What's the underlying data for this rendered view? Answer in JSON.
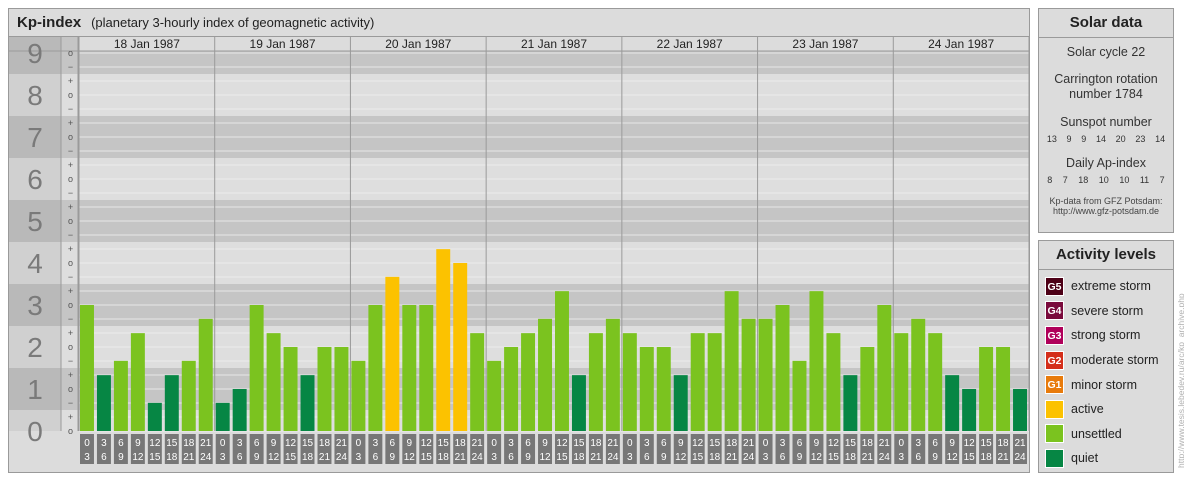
{
  "header": {
    "title": "Kp-index",
    "subtitle": "(planetary 3-hourly index of geomagnetic activity)"
  },
  "solar": {
    "title": "Solar data",
    "cycle": "Solar cycle 22",
    "carrington": "Carrington rotation number 1784",
    "sunspot_label": "Sunspot number",
    "sunspot_values": [
      "13",
      "9",
      "9",
      "14",
      "20",
      "23",
      "14"
    ],
    "ap_label": "Daily Ap-index",
    "ap_values": [
      "8",
      "7",
      "18",
      "10",
      "10",
      "11",
      "7"
    ],
    "credit_line1": "Kp-data from GFZ Potsdam:",
    "credit_line2": "http://www.gfz-potsdam.de"
  },
  "activity": {
    "title": "Activity levels",
    "items": [
      {
        "badge": "G5",
        "label": "extreme storm",
        "color": "#4d0016"
      },
      {
        "badge": "G4",
        "label": "severe storm",
        "color": "#7a0a3c"
      },
      {
        "badge": "G3",
        "label": "strong storm",
        "color": "#b0005a"
      },
      {
        "badge": "G2",
        "label": "moderate storm",
        "color": "#d42e1a"
      },
      {
        "badge": "G1",
        "label": "minor storm",
        "color": "#e87b0c"
      },
      {
        "badge": "",
        "label": "active",
        "color": "#fcc200"
      },
      {
        "badge": "",
        "label": "unsettled",
        "color": "#7bc31f"
      },
      {
        "badge": "",
        "label": "quiet",
        "color": "#068644"
      }
    ]
  },
  "watermark": "http://www.tesis.lebedev.ru/arc/kp_archive.php",
  "colors": {
    "quiet": "#068644",
    "unsettled": "#7bc31f",
    "active": "#fcc200",
    "band_dark": "#c5c5c5",
    "band_light": "#dedede"
  },
  "chart_data": {
    "type": "bar",
    "y_ticks": [
      "0",
      "1",
      "2",
      "3",
      "4",
      "5",
      "6",
      "7",
      "8",
      "9"
    ],
    "y_minor_labels": [
      "o",
      "+",
      "−"
    ],
    "ylim": [
      0,
      9
    ],
    "days": [
      "18 Jan 1987",
      "19 Jan 1987",
      "20 Jan 1987",
      "21 Jan 1987",
      "22 Jan 1987",
      "23 Jan 1987",
      "24 Jan 1987"
    ],
    "interval_labels": [
      [
        "0",
        "3"
      ],
      [
        "3",
        "6"
      ],
      [
        "6",
        "9"
      ],
      [
        "9",
        "12"
      ],
      [
        "12",
        "15"
      ],
      [
        "15",
        "18"
      ],
      [
        "18",
        "21"
      ],
      [
        "21",
        "24"
      ]
    ],
    "series": [
      {
        "values": [
          3,
          1.33,
          1.67,
          2.33,
          0.67,
          1.33,
          1.67,
          2.67,
          0.67,
          1,
          3,
          2.33,
          2,
          1.33,
          2,
          2,
          1.67,
          3,
          3.67,
          3,
          3,
          4.33,
          4,
          2.33,
          1.67,
          2,
          2.33,
          2.67,
          3.33,
          1.33,
          2.33,
          2.67,
          2.33,
          2,
          2,
          1.33,
          2.33,
          2.33,
          3.33,
          2.67,
          2.67,
          3,
          1.67,
          3.33,
          2.33,
          1.33,
          2,
          3,
          2.33,
          2.67,
          2.33,
          1.33,
          1,
          2,
          2,
          1
        ]
      }
    ]
  }
}
